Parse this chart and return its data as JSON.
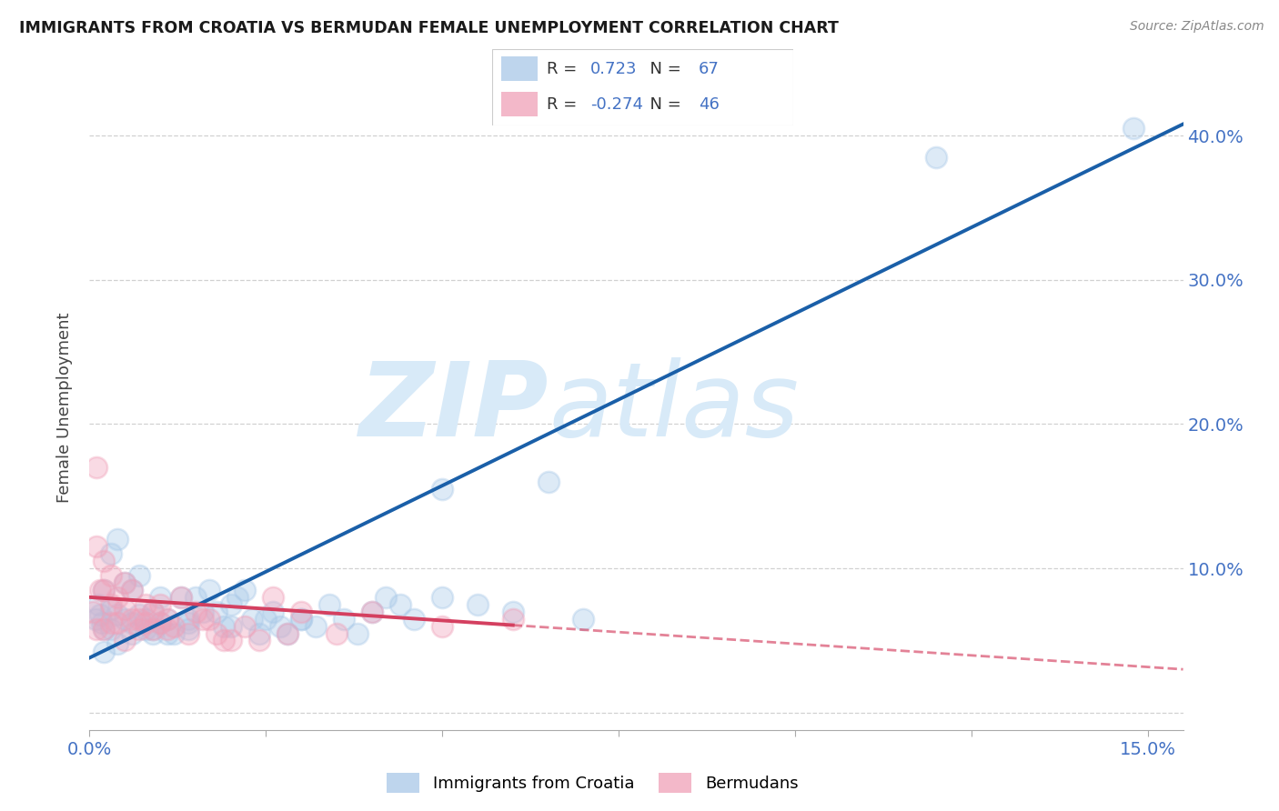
{
  "title": "IMMIGRANTS FROM CROATIA VS BERMUDAN FEMALE UNEMPLOYMENT CORRELATION CHART",
  "source": "Source: ZipAtlas.com",
  "ylabel": "Female Unemployment",
  "xlim": [
    0.0,
    0.155
  ],
  "ylim": [
    -0.012,
    0.435
  ],
  "blue_R": 0.723,
  "blue_N": 67,
  "pink_R": -0.274,
  "pink_N": 46,
  "blue_color": "#a8c8e8",
  "pink_color": "#f0a0b8",
  "blue_line_color": "#1a5fa8",
  "pink_line_color": "#d44060",
  "blue_line_x0": 0.0,
  "blue_line_y0": 0.038,
  "blue_line_x1": 0.155,
  "blue_line_y1": 0.408,
  "pink_line_x0": 0.0,
  "pink_line_y0": 0.08,
  "pink_line_solid_x1": 0.06,
  "pink_line_x1": 0.155,
  "pink_line_y1": 0.03,
  "blue_scatter_x": [
    0.0008,
    0.0012,
    0.0015,
    0.0018,
    0.002,
    0.002,
    0.003,
    0.003,
    0.003,
    0.004,
    0.004,
    0.005,
    0.005,
    0.006,
    0.006,
    0.007,
    0.007,
    0.008,
    0.008,
    0.009,
    0.009,
    0.01,
    0.01,
    0.011,
    0.011,
    0.012,
    0.013,
    0.014,
    0.014,
    0.015,
    0.016,
    0.017,
    0.018,
    0.019,
    0.02,
    0.021,
    0.022,
    0.023,
    0.024,
    0.025,
    0.026,
    0.027,
    0.028,
    0.03,
    0.032,
    0.034,
    0.036,
    0.038,
    0.04,
    0.042,
    0.044,
    0.046,
    0.05,
    0.055,
    0.06,
    0.065,
    0.07,
    0.002,
    0.004,
    0.006,
    0.009,
    0.014,
    0.02,
    0.03,
    0.05,
    0.12,
    0.148
  ],
  "blue_scatter_y": [
    0.065,
    0.075,
    0.068,
    0.062,
    0.085,
    0.058,
    0.11,
    0.072,
    0.058,
    0.12,
    0.068,
    0.09,
    0.065,
    0.085,
    0.062,
    0.095,
    0.068,
    0.065,
    0.058,
    0.07,
    0.058,
    0.08,
    0.062,
    0.065,
    0.055,
    0.055,
    0.08,
    0.065,
    0.058,
    0.08,
    0.07,
    0.085,
    0.07,
    0.06,
    0.075,
    0.08,
    0.085,
    0.065,
    0.055,
    0.065,
    0.07,
    0.06,
    0.055,
    0.065,
    0.06,
    0.075,
    0.065,
    0.055,
    0.07,
    0.08,
    0.075,
    0.065,
    0.08,
    0.075,
    0.07,
    0.16,
    0.065,
    0.042,
    0.048,
    0.055,
    0.055,
    0.062,
    0.06,
    0.065,
    0.155,
    0.385,
    0.405
  ],
  "pink_scatter_x": [
    0.0005,
    0.001,
    0.001,
    0.0015,
    0.002,
    0.002,
    0.003,
    0.003,
    0.004,
    0.004,
    0.005,
    0.005,
    0.006,
    0.006,
    0.007,
    0.007,
    0.008,
    0.008,
    0.009,
    0.009,
    0.01,
    0.01,
    0.011,
    0.011,
    0.012,
    0.013,
    0.014,
    0.015,
    0.016,
    0.017,
    0.018,
    0.019,
    0.02,
    0.022,
    0.024,
    0.026,
    0.028,
    0.03,
    0.035,
    0.04,
    0.05,
    0.06,
    0.001,
    0.002,
    0.003,
    0.005
  ],
  "pink_scatter_y": [
    0.07,
    0.17,
    0.058,
    0.085,
    0.085,
    0.058,
    0.075,
    0.062,
    0.08,
    0.062,
    0.09,
    0.072,
    0.085,
    0.065,
    0.065,
    0.058,
    0.075,
    0.062,
    0.07,
    0.058,
    0.075,
    0.062,
    0.065,
    0.058,
    0.06,
    0.08,
    0.055,
    0.07,
    0.065,
    0.065,
    0.055,
    0.05,
    0.05,
    0.06,
    0.05,
    0.08,
    0.055,
    0.07,
    0.055,
    0.07,
    0.06,
    0.065,
    0.115,
    0.105,
    0.095,
    0.05
  ],
  "legend_items": [
    "Immigrants from Croatia",
    "Bermudans"
  ],
  "background_color": "#ffffff",
  "grid_color": "#cccccc",
  "watermark_zip": "ZIP",
  "watermark_atlas": "atlas",
  "watermark_color": "#d8eaf8"
}
